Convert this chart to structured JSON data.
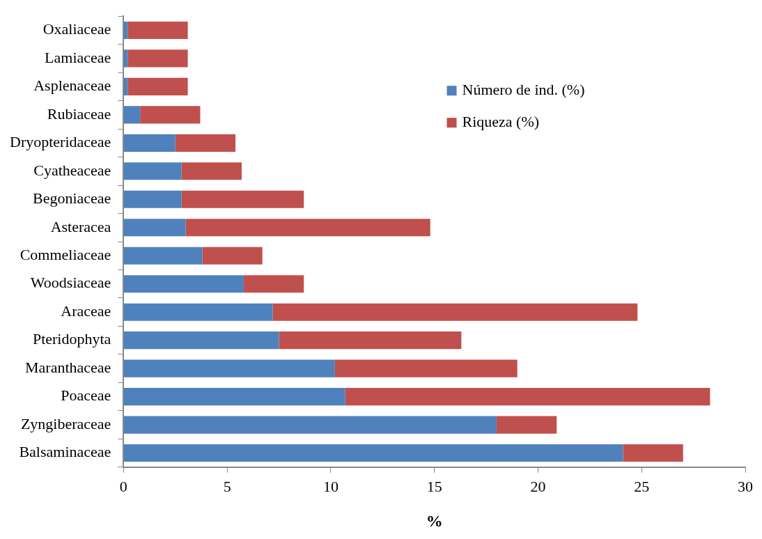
{
  "chart_data": {
    "type": "bar",
    "orientation": "horizontal",
    "stacked": true,
    "xlabel": "%",
    "categories": [
      "Oxaliaceae",
      "Lamiaceae",
      "Asplenaceae",
      "Rubiaceae",
      "Dryopteridaceae",
      "Cyatheaceae",
      "Begoniaceae",
      "Asteracea",
      "Commeliaceae",
      "Woodsiaceae",
      "Araceae",
      "Pteridophyta",
      "Maranthaceae",
      "Poaceae",
      "Zyngiberaceae",
      "Balsaminaceae"
    ],
    "series": [
      {
        "name": "Número de ind. (%)",
        "color": "#4f81bd",
        "values": [
          0.2,
          0.2,
          0.2,
          0.8,
          2.5,
          2.8,
          2.8,
          3.0,
          3.8,
          5.8,
          7.2,
          7.5,
          10.2,
          10.7,
          18.0,
          24.1
        ]
      },
      {
        "name": "Riqueza (%)",
        "color": "#c0504d",
        "values": [
          2.9,
          2.9,
          2.9,
          2.9,
          2.9,
          2.9,
          5.9,
          11.8,
          2.9,
          2.9,
          17.6,
          8.8,
          8.8,
          17.6,
          2.9,
          2.9
        ]
      }
    ],
    "xlim": [
      0,
      30
    ],
    "xticks": [
      0,
      5,
      10,
      15,
      20,
      25,
      30
    ],
    "grid": false,
    "legend": "top right"
  }
}
